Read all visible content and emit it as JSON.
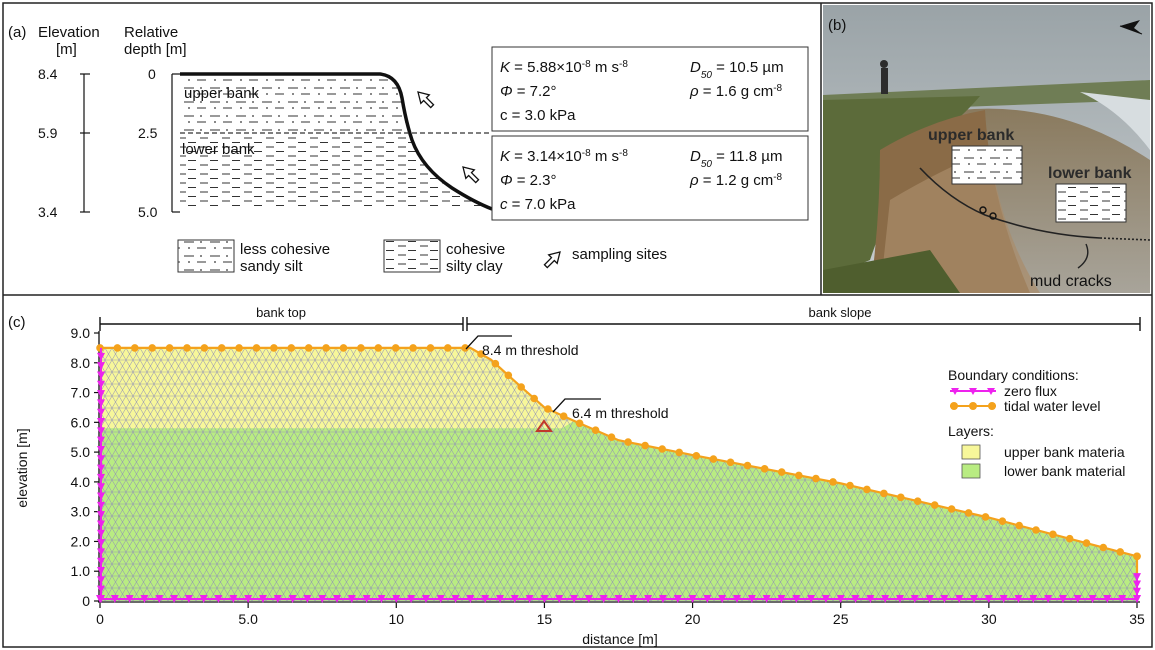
{
  "panel_a": {
    "label": "(a)",
    "elevation_header": [
      "Elevation",
      "[m]"
    ],
    "depth_header": [
      "Relative",
      "depth [m]"
    ],
    "elevation_ticks": [
      "8.4",
      "5.9",
      "3.4"
    ],
    "depth_ticks": [
      "0",
      "2.5",
      "5.0"
    ],
    "upper_label": "upper bank",
    "lower_label": "lower bank",
    "upper_props": {
      "k_label": "K",
      "k_value": " = 5.88×10",
      "k_exp": "-8",
      "k_unit": " m s",
      "k_unit_exp": "-8",
      "d_label": "D",
      "d_sub": "50",
      "d_value": " = 10.5 µm",
      "phi_label": "Φ",
      "phi_value": " = 7.2°",
      "rho_label": "ρ",
      "rho_value": " = 1.6 g cm",
      "rho_exp": "-8",
      "c_line": "c = 3.0 kPa"
    },
    "lower_props": {
      "k_label": "K",
      "k_value": " = 3.14×10",
      "k_exp": "-8",
      "k_unit": " m s",
      "k_unit_exp": "-8",
      "d_label": "D",
      "d_sub": "50",
      "d_value": " = 11.8 µm",
      "phi_label": "Φ",
      "phi_value": " = 2.3°",
      "rho_label": "ρ",
      "rho_value": " = 1.2 g cm",
      "rho_exp": "-8",
      "c_label": "c",
      "c_value": " = 7.0 kPa"
    },
    "legend": {
      "less_cohesive": [
        "less cohesive",
        "sandy silt"
      ],
      "cohesive": [
        "cohesive",
        "silty clay"
      ],
      "sampling": "sampling sites"
    }
  },
  "panel_b": {
    "label": "(b)",
    "upper_bank": "upper bank",
    "lower_bank": "lower bank",
    "mud_cracks": "mud cracks"
  },
  "panel_c": {
    "label": "(c)",
    "bank_top": "bank top",
    "bank_slope": "bank slope",
    "threshold_84": "8.4 m threshold",
    "threshold_64": "6.4 m threshold",
    "ylabel": "elevation [m]",
    "xlabel": "distance [m]",
    "y_ticks": [
      "0",
      "1.0",
      "2.0",
      "3.0",
      "4.0",
      "5.0",
      "6.0",
      "7.0",
      "8.0",
      "9.0"
    ],
    "x_ticks": [
      "0",
      "5.0",
      "10",
      "15",
      "20",
      "25",
      "30",
      "35"
    ],
    "legend": {
      "bc_title": "Boundary conditions:",
      "zero_flux": "zero flux",
      "tidal": "tidal water level",
      "layers_title": "Layers:",
      "upper_mat": "upper bank materia",
      "lower_mat": "lower bank material"
    },
    "colors": {
      "upper": "#f7f79a",
      "lower": "#b9ec82",
      "mesh": "#8f8fb8",
      "flux": "#ee22ee",
      "tidal": "#f4a21c",
      "marker": "#c0392b"
    }
  }
}
